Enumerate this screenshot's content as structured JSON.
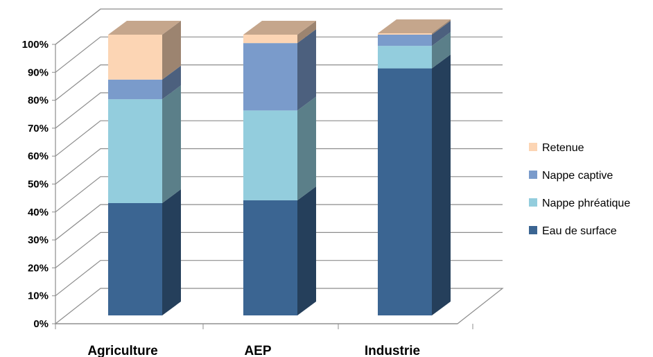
{
  "chart_data": {
    "type": "bar",
    "stacked": true,
    "percent": true,
    "three_d": true,
    "categories": [
      "Agriculture",
      "AEP",
      "Industrie"
    ],
    "series": [
      {
        "name": "Eau de surface",
        "values": [
          40,
          41,
          88
        ],
        "color": "#3B6592"
      },
      {
        "name": "Nappe phréatique",
        "values": [
          37,
          32,
          8
        ],
        "color": "#93CDDD"
      },
      {
        "name": "Nappe captive",
        "values": [
          7,
          24,
          4
        ],
        "color": "#7A9BCB"
      },
      {
        "name": "Retenue",
        "values": [
          16,
          3,
          0.5
        ],
        "color": "#FCD5B4"
      }
    ],
    "yticks": [
      "0%",
      "10%",
      "20%",
      "30%",
      "40%",
      "50%",
      "60%",
      "70%",
      "80%",
      "90%",
      "100%"
    ],
    "ylim": [
      0,
      100
    ],
    "grid": true,
    "legend_position": "right",
    "legend_order": [
      "Retenue",
      "Nappe captive",
      "Nappe phréatique",
      "Eau de surface"
    ]
  }
}
